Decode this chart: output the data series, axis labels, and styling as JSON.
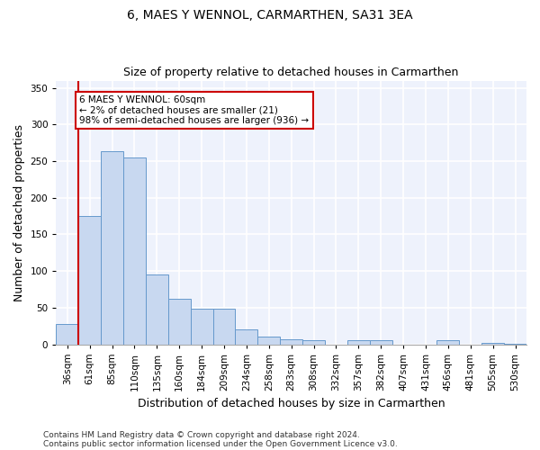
{
  "title": "6, MAES Y WENNOL, CARMARTHEN, SA31 3EA",
  "subtitle": "Size of property relative to detached houses in Carmarthen",
  "xlabel": "Distribution of detached houses by size in Carmarthen",
  "ylabel": "Number of detached properties",
  "footnote1": "Contains HM Land Registry data © Crown copyright and database right 2024.",
  "footnote2": "Contains public sector information licensed under the Open Government Licence v3.0.",
  "bar_color": "#c8d8f0",
  "bar_edge_color": "#6699cc",
  "bar_categories": [
    "36sqm",
    "61sqm",
    "85sqm",
    "110sqm",
    "135sqm",
    "160sqm",
    "184sqm",
    "209sqm",
    "234sqm",
    "258sqm",
    "283sqm",
    "308sqm",
    "332sqm",
    "357sqm",
    "382sqm",
    "407sqm",
    "431sqm",
    "456sqm",
    "481sqm",
    "505sqm",
    "530sqm"
  ],
  "bar_values": [
    28,
    175,
    264,
    255,
    95,
    62,
    49,
    49,
    20,
    11,
    7,
    5,
    0,
    5,
    5,
    0,
    0,
    5,
    0,
    2,
    1
  ],
  "ylim": [
    0,
    360
  ],
  "yticks": [
    0,
    50,
    100,
    150,
    200,
    250,
    300,
    350
  ],
  "annotation_title": "6 MAES Y WENNOL: 60sqm",
  "annotation_line1": "← 2% of detached houses are smaller (21)",
  "annotation_line2": "98% of semi-detached houses are larger (936) →",
  "red_line_color": "#cc0000",
  "annotation_box_color": "#ffffff",
  "annotation_box_edge": "#cc0000",
  "bg_color": "#eef2fc",
  "grid_color": "#ffffff",
  "fig_bg": "#ffffff",
  "title_fontsize": 10,
  "subtitle_fontsize": 9,
  "axis_label_fontsize": 9,
  "tick_fontsize": 7.5,
  "annotation_fontsize": 7.5,
  "footnote_fontsize": 6.5
}
